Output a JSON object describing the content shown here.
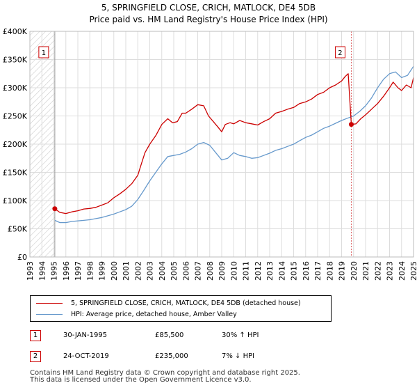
{
  "title_line1": "5, SPRINGFIELD CLOSE, CRICH, MATLOCK, DE4 5DB",
  "title_line2": "Price paid vs. HM Land Registry's House Price Index (HPI)",
  "chart_data": {
    "type": "line",
    "xlim": [
      1993,
      2025
    ],
    "ylim": [
      0,
      400000
    ],
    "y_ticks": [
      0,
      50000,
      100000,
      150000,
      200000,
      250000,
      300000,
      350000,
      400000
    ],
    "y_tick_labels": [
      "£0",
      "£50K",
      "£100K",
      "£150K",
      "£200K",
      "£250K",
      "£300K",
      "£350K",
      "£400K"
    ],
    "x_ticks": [
      1993,
      1994,
      1995,
      1996,
      1997,
      1998,
      1999,
      2000,
      2001,
      2002,
      2003,
      2004,
      2005,
      2006,
      2007,
      2008,
      2009,
      2010,
      2011,
      2012,
      2013,
      2014,
      2015,
      2016,
      2017,
      2018,
      2019,
      2020,
      2021,
      2022,
      2023,
      2024,
      2025
    ],
    "grid": true,
    "hatched_region_before": 1995.08,
    "series": [
      {
        "name": "5, SPRINGFIELD CLOSE, CRICH, MATLOCK, DE4 5DB (detached house)",
        "color": "#cc0000",
        "x": [
          1995.08,
          1995.5,
          1996,
          1996.5,
          1997,
          1997.5,
          1998,
          1998.5,
          1999,
          1999.5,
          2000,
          2000.5,
          2001,
          2001.5,
          2002,
          2002.3,
          2002.6,
          2003,
          2003.5,
          2004,
          2004.5,
          2004.9,
          2005.3,
          2005.7,
          2006,
          2006.5,
          2007,
          2007.5,
          2007.9,
          2008.3,
          2008.7,
          2009,
          2009.3,
          2009.7,
          2010,
          2010.5,
          2011,
          2011.5,
          2012,
          2012.5,
          2013,
          2013.5,
          2014,
          2014.5,
          2015,
          2015.5,
          2016,
          2016.5,
          2017,
          2017.5,
          2018,
          2018.5,
          2019,
          2019.3,
          2019.55,
          2019.81,
          2020.2,
          2020.6,
          2021,
          2021.5,
          2022,
          2022.5,
          2023,
          2023.3,
          2023.7,
          2024,
          2024.4,
          2024.8,
          2025
        ],
        "y": [
          85500,
          79000,
          77000,
          80000,
          82000,
          85000,
          86000,
          88000,
          92000,
          96000,
          105000,
          112000,
          120000,
          130000,
          145000,
          165000,
          185000,
          200000,
          215000,
          235000,
          245000,
          238000,
          240000,
          255000,
          255000,
          262000,
          270000,
          268000,
          250000,
          240000,
          230000,
          222000,
          235000,
          238000,
          236000,
          242000,
          238000,
          236000,
          234000,
          240000,
          245000,
          255000,
          258000,
          262000,
          265000,
          272000,
          275000,
          280000,
          288000,
          292000,
          300000,
          305000,
          312000,
          320000,
          325000,
          235000,
          236000,
          245000,
          252000,
          262000,
          272000,
          285000,
          300000,
          310000,
          300000,
          295000,
          305000,
          300000,
          318000
        ]
      },
      {
        "name": "HPI: Average price, detached house, Amber Valley",
        "color": "#6699cc",
        "x": [
          1995.08,
          1995.5,
          1996,
          1996.5,
          1997,
          1997.5,
          1998,
          1998.5,
          1999,
          1999.5,
          2000,
          2000.5,
          2001,
          2001.5,
          2002,
          2002.5,
          2003,
          2003.5,
          2004,
          2004.5,
          2005,
          2005.5,
          2006,
          2006.5,
          2007,
          2007.5,
          2008,
          2008.5,
          2009,
          2009.5,
          2010,
          2010.5,
          2011,
          2011.5,
          2012,
          2012.5,
          2013,
          2013.5,
          2014,
          2014.5,
          2015,
          2015.5,
          2016,
          2016.5,
          2017,
          2017.5,
          2018,
          2018.5,
          2019,
          2019.5,
          2020,
          2020.5,
          2021,
          2021.5,
          2022,
          2022.5,
          2023,
          2023.5,
          2024,
          2024.5,
          2025
        ],
        "y": [
          65000,
          61000,
          61000,
          63000,
          64000,
          65000,
          66000,
          68000,
          70000,
          73000,
          76000,
          80000,
          84000,
          90000,
          102000,
          118000,
          135000,
          150000,
          165000,
          178000,
          180000,
          182000,
          186000,
          192000,
          200000,
          203000,
          198000,
          185000,
          172000,
          175000,
          185000,
          180000,
          178000,
          175000,
          176000,
          180000,
          184000,
          189000,
          192000,
          196000,
          200000,
          206000,
          212000,
          216000,
          222000,
          228000,
          232000,
          237000,
          242000,
          246000,
          250000,
          258000,
          268000,
          282000,
          300000,
          315000,
          325000,
          328000,
          318000,
          322000,
          338000
        ]
      }
    ],
    "annotations": [
      {
        "label": "1",
        "x": 1995.08,
        "y": 85500
      },
      {
        "label": "2",
        "x": 2019.81,
        "y": 235000
      }
    ]
  },
  "legend": {
    "red_label": "5, SPRINGFIELD CLOSE, CRICH, MATLOCK, DE4 5DB (detached house)",
    "blue_label": "HPI: Average price, detached house, Amber Valley"
  },
  "transactions": [
    {
      "num": "1",
      "date": "30-JAN-1995",
      "price": "£85,500",
      "hpi": "30% ↑ HPI"
    },
    {
      "num": "2",
      "date": "24-OCT-2019",
      "price": "£235,000",
      "hpi": "7% ↓ HPI"
    }
  ],
  "footer_line1": "Contains HM Land Registry data © Crown copyright and database right 2025.",
  "footer_line2": "This data is licensed under the Open Government Licence v3.0."
}
